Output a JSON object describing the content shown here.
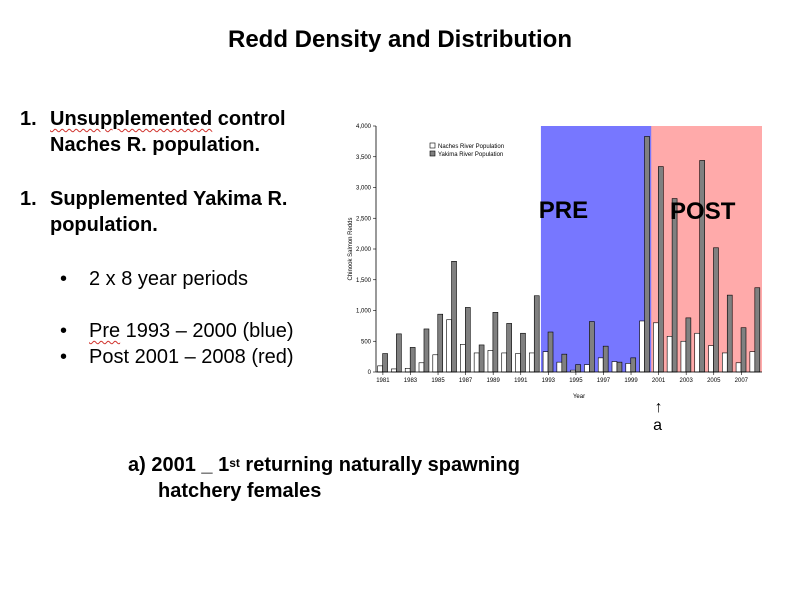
{
  "title": "Redd Density and Distribution",
  "bullets": [
    {
      "num": "1.",
      "pre": "Unsupplemented",
      "rest": " control Naches R. population."
    },
    {
      "num": "1.",
      "text": "Supplemented Yakima R. population."
    }
  ],
  "sub_bullets": [
    {
      "dot": "•",
      "text": "2 x 8 year periods"
    },
    {
      "dot": "•",
      "pre": "Pre",
      "rest": " 1993 – 2000 (blue)"
    },
    {
      "dot": "•",
      "text": "Post 2001 – 2008 (red)"
    }
  ],
  "footnote": {
    "label": "a)  2001 _ 1",
    "sup": "st",
    "rest": " returning naturally spawning",
    "line2": "hatchery females"
  },
  "colors": {
    "pre": "#7777ff",
    "post": "#ffaaaa",
    "naches_fill": "#ffffff",
    "yakima_fill": "#808080"
  },
  "chart_data": {
    "type": "bar",
    "xlabel": "Year",
    "ylabel": "Chinook Salmon Redds",
    "ylim": [
      0,
      4000
    ],
    "yticks": [
      "0",
      "500",
      "1,000",
      "1,500",
      "2,000",
      "2,500",
      "3,000",
      "3,500",
      "4,000"
    ],
    "categories": [
      1981,
      1982,
      1983,
      1984,
      1985,
      1986,
      1987,
      1988,
      1989,
      1990,
      1991,
      1992,
      1993,
      1994,
      1995,
      1996,
      1997,
      1998,
      1999,
      2000,
      2001,
      2002,
      2003,
      2004,
      2005,
      2006,
      2007,
      2008
    ],
    "xtick_labels": [
      "1981",
      "1983",
      "1985",
      "1987",
      "1989",
      "1991",
      "1993",
      "1995",
      "1997",
      "1999",
      "2001",
      "2003",
      "2005",
      "2007"
    ],
    "series": [
      {
        "name": "Naches River Population",
        "values": [
          100,
          50,
          60,
          150,
          280,
          850,
          450,
          310,
          350,
          310,
          300,
          310,
          330,
          160,
          30,
          120,
          230,
          170,
          140,
          830,
          800,
          580,
          500,
          630,
          430,
          310,
          150,
          330
        ]
      },
      {
        "name": "Yakima River Population",
        "values": [
          300,
          620,
          400,
          700,
          940,
          1800,
          1050,
          440,
          970,
          790,
          630,
          1240,
          650,
          290,
          120,
          820,
          420,
          160,
          230,
          3830,
          3340,
          2820,
          880,
          3440,
          2020,
          1250,
          720,
          1370
        ]
      }
    ],
    "regions": [
      {
        "label": "PRE",
        "from": 1993,
        "to": 2000
      },
      {
        "label": "POST",
        "from": 2001,
        "to": 2008
      }
    ],
    "annotation": {
      "year": 2001,
      "label": "a",
      "arrow": "↑"
    }
  }
}
